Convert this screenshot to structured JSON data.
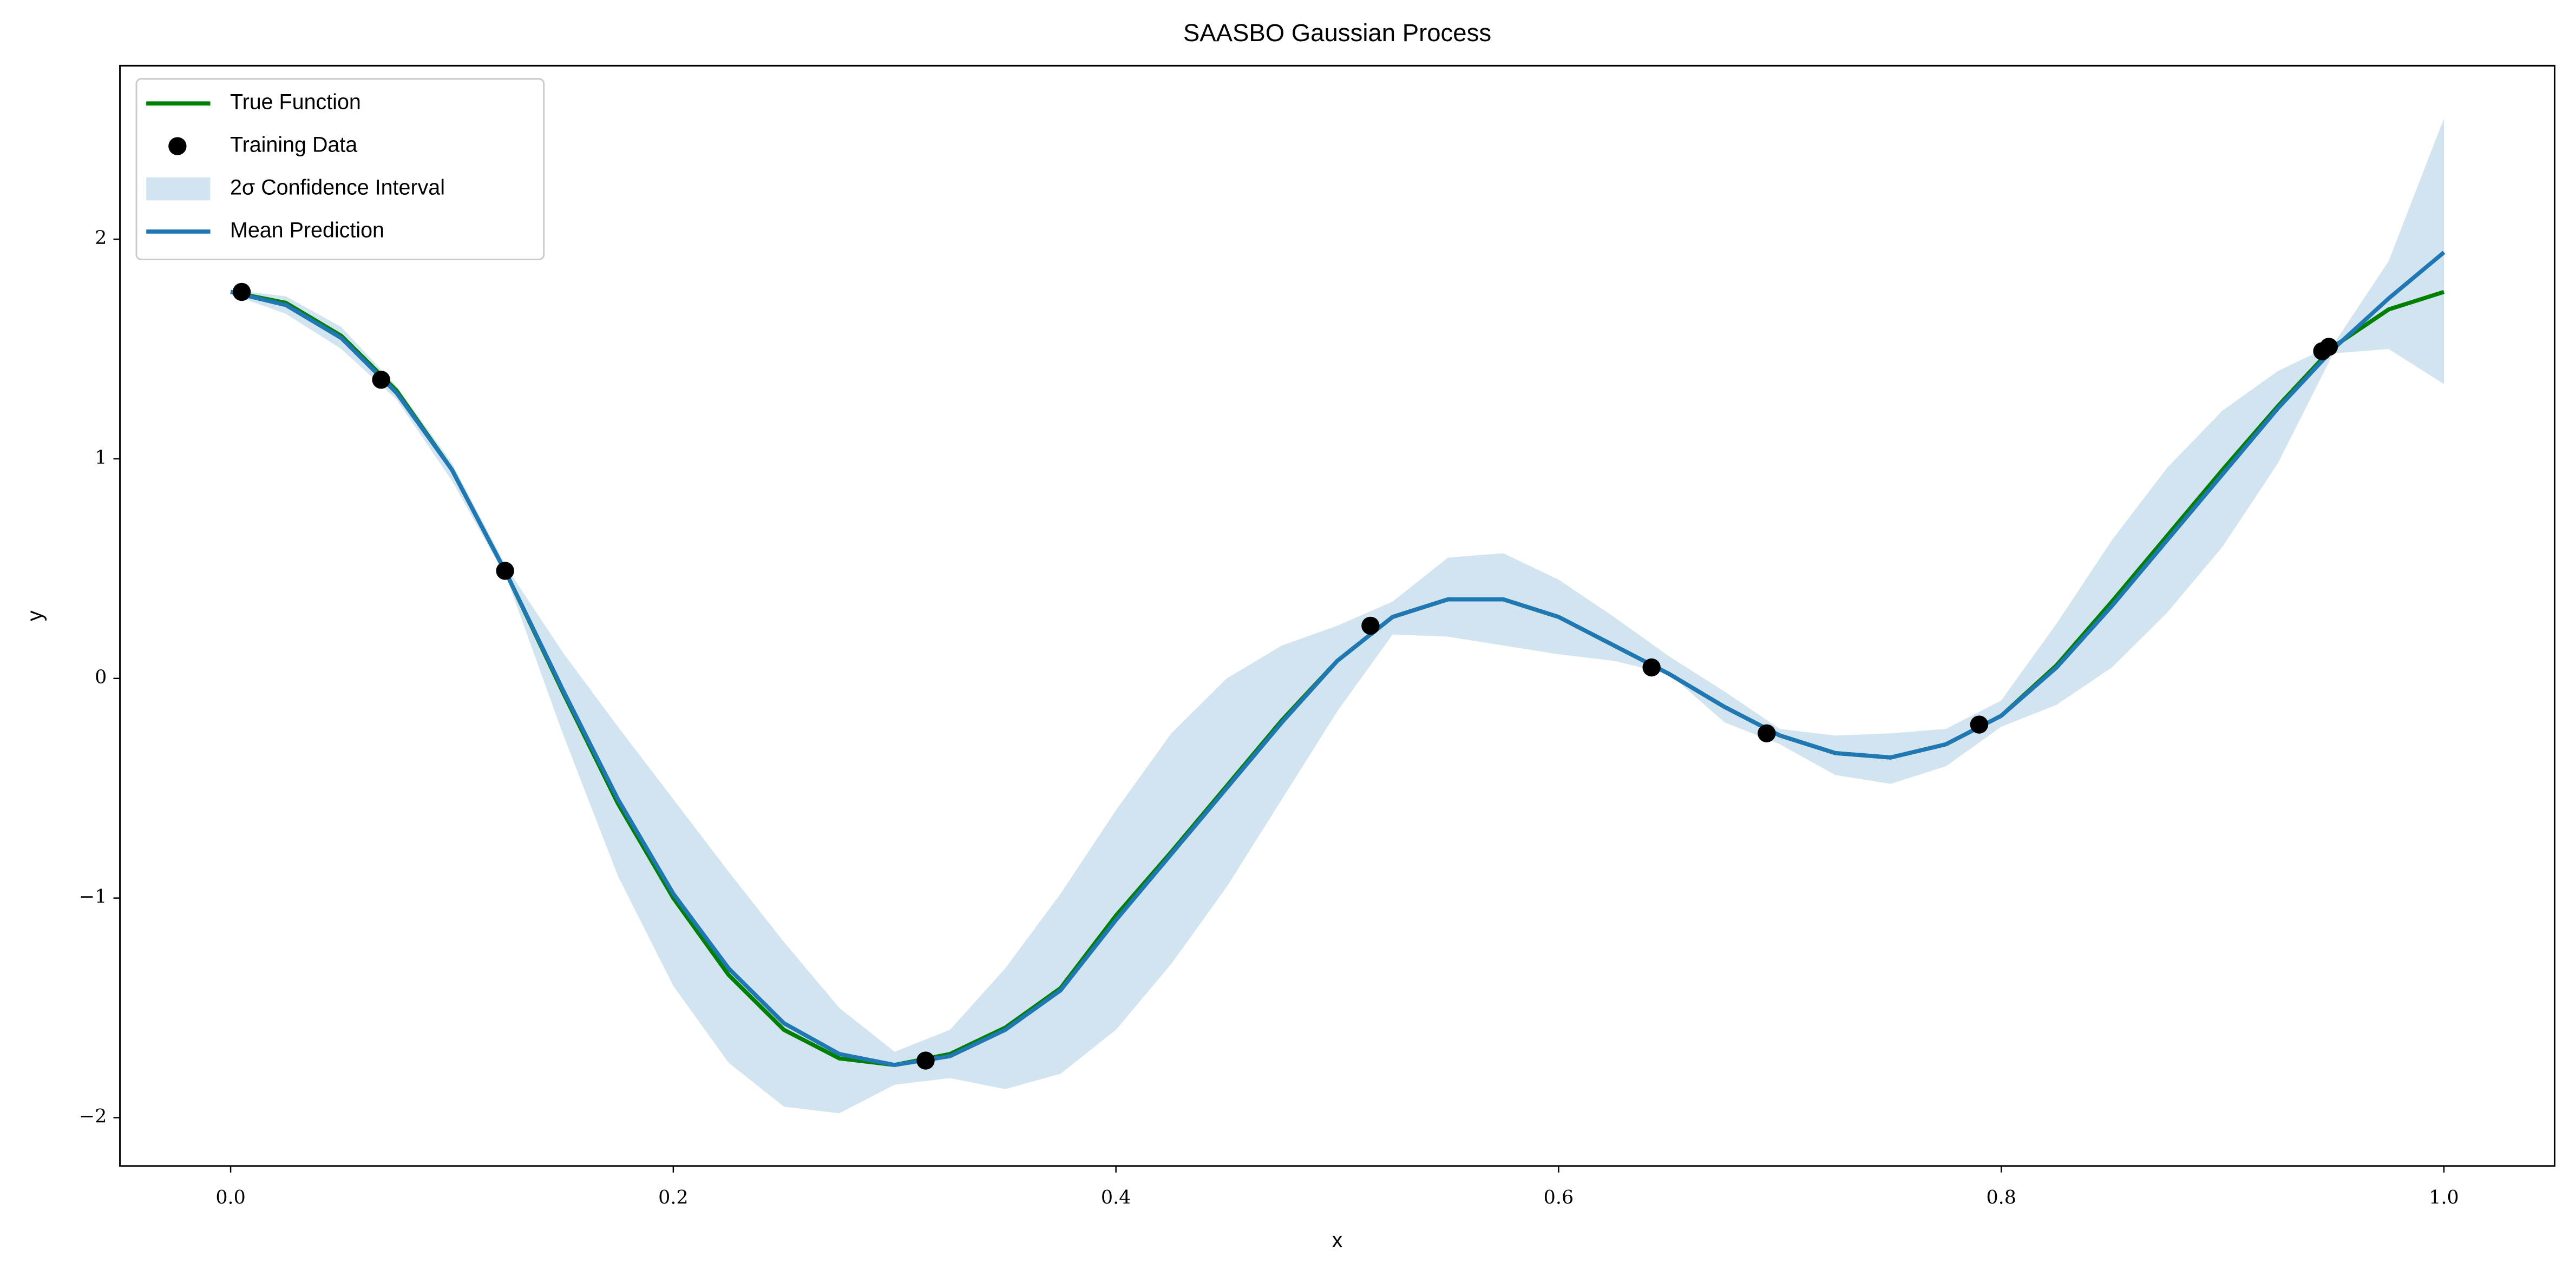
{
  "chart_data": {
    "type": "line",
    "title": "SAASBO Gaussian Process",
    "x_label": "x",
    "y_label": "y",
    "x": [
      0,
      0.025,
      0.05,
      0.075,
      0.1,
      0.125,
      0.15,
      0.175,
      0.2,
      0.225,
      0.25,
      0.275,
      0.3,
      0.325,
      0.35,
      0.375,
      0.4,
      0.425,
      0.45,
      0.475,
      0.5,
      0.525,
      0.55,
      0.575,
      0.6,
      0.625,
      0.65,
      0.675,
      0.7,
      0.725,
      0.75,
      0.775,
      0.8,
      0.825,
      0.85,
      0.875,
      0.9,
      0.925,
      0.95,
      0.975,
      1.0
    ],
    "series": [
      {
        "name": "True Function",
        "type": "line",
        "color": "#008000",
        "values": [
          1.76,
          1.71,
          1.56,
          1.31,
          0.95,
          0.47,
          -0.06,
          -0.57,
          -1.0,
          -1.35,
          -1.6,
          -1.73,
          -1.76,
          -1.71,
          -1.59,
          -1.41,
          -1.08,
          -0.79,
          -0.49,
          -0.19,
          0.08,
          0.28,
          0.36,
          0.36,
          0.28,
          0.15,
          0.02,
          -0.13,
          -0.26,
          -0.34,
          -0.36,
          -0.3,
          -0.17,
          0.06,
          0.35,
          0.65,
          0.95,
          1.24,
          1.51,
          1.68,
          1.76
        ]
      },
      {
        "name": "Training Data",
        "type": "scatter",
        "color": "#000000",
        "x": [
          0.005,
          0.068,
          0.124,
          0.314,
          0.515,
          0.642,
          0.694,
          0.79,
          0.945,
          0.948
        ],
        "values": [
          1.76,
          1.36,
          0.49,
          -1.74,
          0.24,
          0.05,
          -0.25,
          -0.21,
          1.49,
          1.51
        ]
      },
      {
        "name": "2σ Confidence Interval",
        "type": "band",
        "color": "#1f77b4",
        "upper": [
          1.77,
          1.74,
          1.6,
          1.33,
          0.98,
          0.5,
          0.12,
          -0.22,
          -0.55,
          -0.88,
          -1.2,
          -1.5,
          -1.7,
          -1.6,
          -1.32,
          -0.98,
          -0.6,
          -0.25,
          0.0,
          0.15,
          0.24,
          0.35,
          0.55,
          0.57,
          0.45,
          0.28,
          0.1,
          -0.06,
          -0.23,
          -0.26,
          -0.25,
          -0.23,
          -0.1,
          0.25,
          0.63,
          0.96,
          1.22,
          1.4,
          1.52,
          1.9,
          2.55
        ],
        "lower": [
          1.75,
          1.66,
          1.5,
          1.27,
          0.9,
          0.45,
          -0.25,
          -0.9,
          -1.4,
          -1.75,
          -1.95,
          -1.98,
          -1.85,
          -1.82,
          -1.87,
          -1.8,
          -1.6,
          -1.3,
          -0.95,
          -0.55,
          -0.15,
          0.2,
          0.19,
          0.15,
          0.11,
          0.08,
          0.02,
          -0.2,
          -0.3,
          -0.44,
          -0.48,
          -0.4,
          -0.22,
          -0.12,
          0.05,
          0.3,
          0.6,
          0.98,
          1.48,
          1.5,
          1.34
        ]
      },
      {
        "name": "Mean Prediction",
        "type": "line",
        "color": "#1f77b4",
        "values": [
          1.76,
          1.7,
          1.55,
          1.3,
          0.95,
          0.47,
          -0.05,
          -0.55,
          -0.98,
          -1.32,
          -1.57,
          -1.71,
          -1.76,
          -1.72,
          -1.6,
          -1.42,
          -1.1,
          -0.8,
          -0.5,
          -0.2,
          0.08,
          0.28,
          0.36,
          0.36,
          0.28,
          0.15,
          0.02,
          -0.13,
          -0.26,
          -0.34,
          -0.36,
          -0.3,
          -0.17,
          0.05,
          0.33,
          0.63,
          0.93,
          1.23,
          1.5,
          1.73,
          1.94
        ]
      }
    ],
    "xlim": [
      -0.05,
      1.05
    ],
    "ylim": [
      -2.22,
      2.79
    ],
    "xticks": [
      {
        "value": 0,
        "label": "0.0"
      },
      0.2,
      0.4,
      0.6,
      0.8,
      {
        "value": 1,
        "label": "1.0"
      }
    ],
    "yticks": [
      {
        "value": -2,
        "label": "−2"
      },
      {
        "value": -1,
        "label": "−1"
      },
      0,
      1,
      2
    ],
    "grid": false,
    "legend": "upper left"
  }
}
